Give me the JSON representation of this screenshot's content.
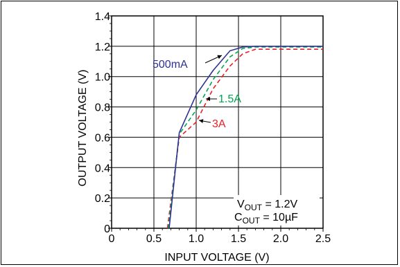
{
  "chart_data": {
    "type": "line",
    "xlabel": "INPUT VOLTAGE (V)",
    "ylabel": "OUTPUT VOLTAGE (V)",
    "xlim": [
      0,
      2.5
    ],
    "ylim": [
      0,
      1.4
    ],
    "x_ticks": [
      0,
      0.5,
      1.0,
      1.5,
      2.0,
      2.5
    ],
    "x_tick_labels": [
      "0",
      "0.5",
      "1.0",
      "1.5",
      "2.0",
      "2.5"
    ],
    "y_ticks": [
      0,
      0.2,
      0.4,
      0.6,
      0.8,
      1.0,
      1.2,
      1.4
    ],
    "y_tick_labels": [
      "0",
      "0.2",
      "0.4",
      "0.6",
      "0.8",
      "1.0",
      "1.2",
      "1.4"
    ],
    "grid": true,
    "series": [
      {
        "name": "500mA",
        "color": "#2e3192",
        "dash": "solid",
        "x": [
          0.68,
          0.8,
          1.0,
          1.2,
          1.4,
          1.55,
          1.7,
          2.0,
          2.5
        ],
        "y": [
          0,
          0.63,
          0.88,
          1.04,
          1.17,
          1.195,
          1.2,
          1.2,
          1.2
        ]
      },
      {
        "name": "1.5A",
        "color": "#00a651",
        "dash": "dashed",
        "x": [
          0.67,
          0.8,
          1.0,
          1.2,
          1.4,
          1.55,
          1.7,
          2.0,
          2.5
        ],
        "y": [
          0,
          0.62,
          0.78,
          0.98,
          1.13,
          1.185,
          1.195,
          1.195,
          1.195
        ]
      },
      {
        "name": "3A",
        "color": "#ed1c24",
        "dash": "dashed",
        "x": [
          0.66,
          0.8,
          1.0,
          1.2,
          1.4,
          1.55,
          1.7,
          2.0,
          2.5
        ],
        "y": [
          0,
          0.6,
          0.7,
          0.92,
          1.07,
          1.15,
          1.18,
          1.18,
          1.18
        ]
      }
    ],
    "annotations": [
      {
        "label_main": "V",
        "label_sub": "OUT",
        "label_rest": " = 1.2V"
      },
      {
        "label_main": "C",
        "label_sub": "OUT",
        "label_rest": " = 10µF"
      }
    ]
  }
}
